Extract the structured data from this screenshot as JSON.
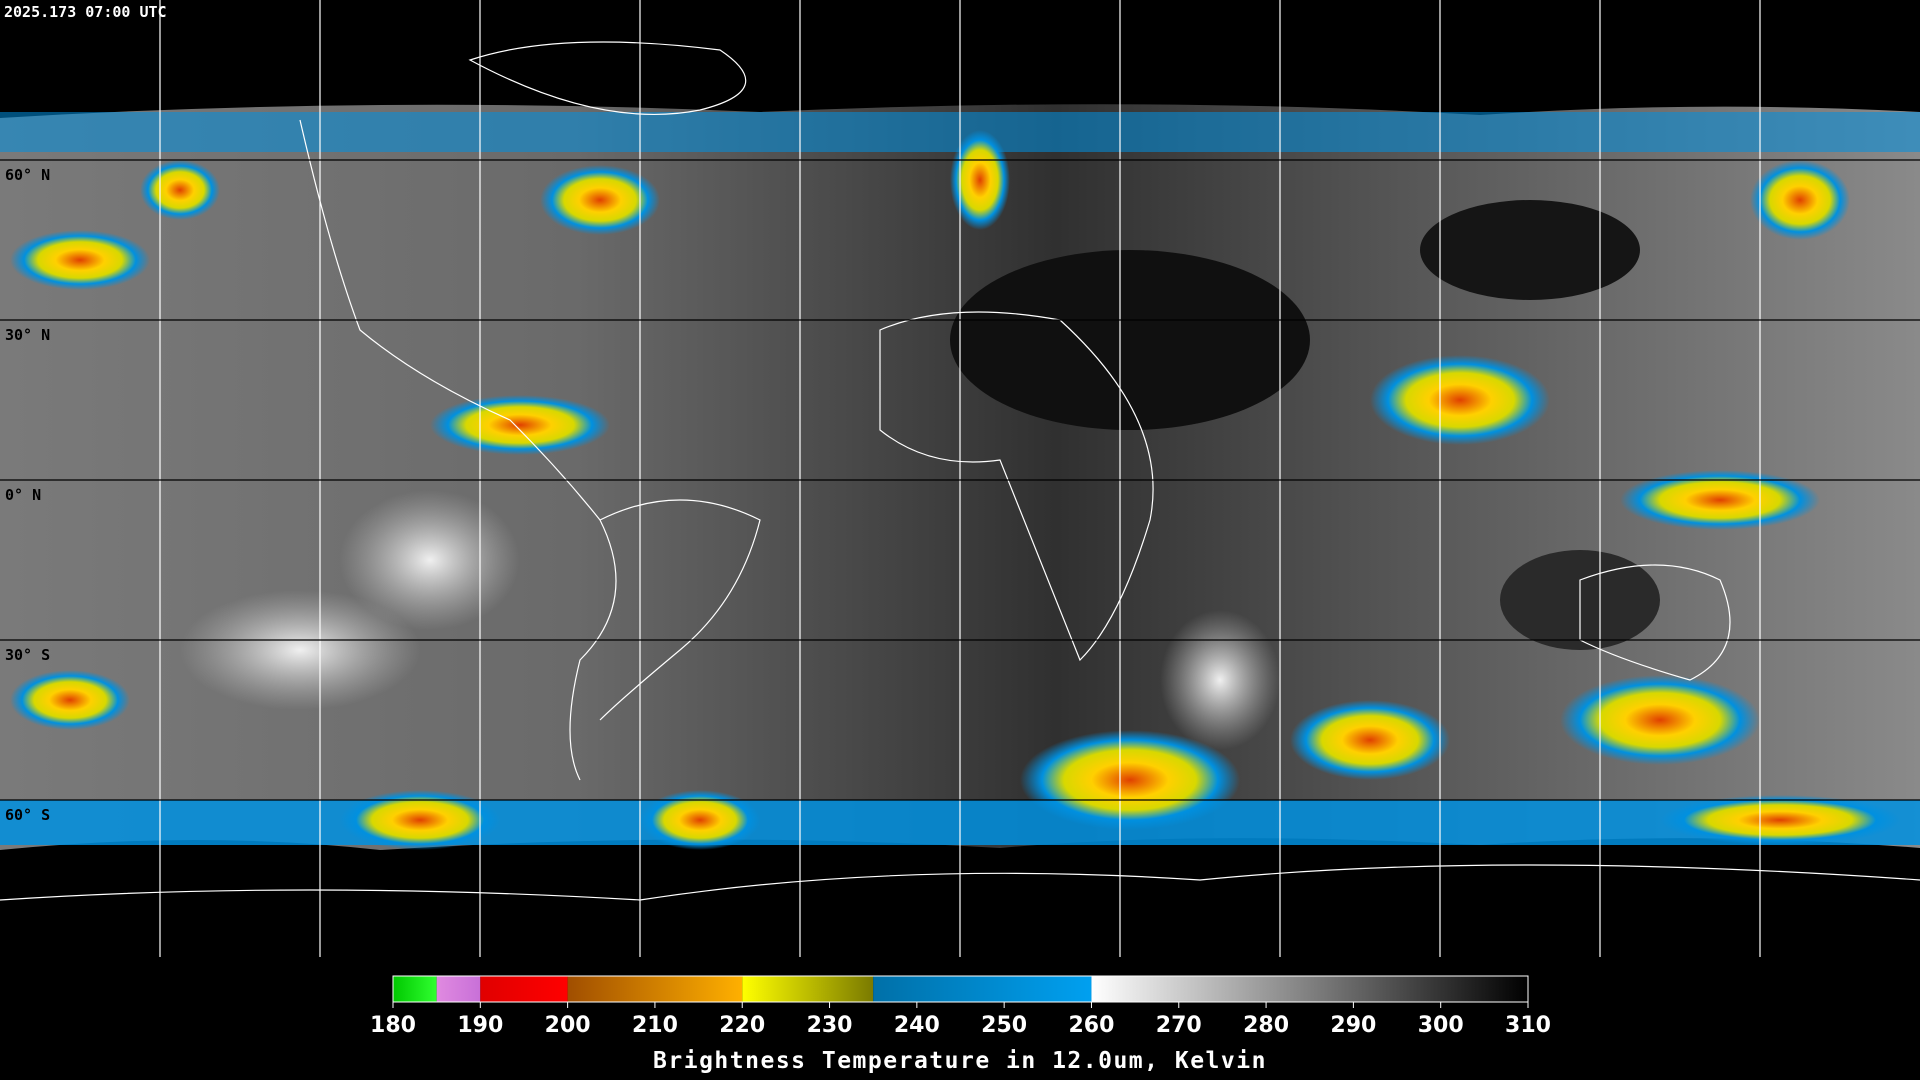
{
  "timestamp": "2025.173 07:00 UTC",
  "latitude_labels": [
    "60° N",
    "30° N",
    "0° N",
    "30° S",
    "60° S"
  ],
  "colorbar": {
    "title": "Brightness Temperature in 12.0um, Kelvin",
    "lim": [
      180,
      310
    ],
    "ticks": [
      180,
      190,
      200,
      210,
      220,
      230,
      240,
      250,
      260,
      270,
      280,
      290,
      300,
      310
    ],
    "segments": [
      {
        "from": 180,
        "to": 185,
        "colors": [
          "#00c800",
          "#30ff30"
        ]
      },
      {
        "from": 185,
        "to": 190,
        "colors": [
          "#e08ae0",
          "#c870d8"
        ]
      },
      {
        "from": 190,
        "to": 200,
        "colors": [
          "#e00000",
          "#ff0000"
        ]
      },
      {
        "from": 200,
        "to": 220,
        "colors": [
          "#a04e00",
          "#ffb000"
        ]
      },
      {
        "from": 220,
        "to": 235,
        "colors": [
          "#ffff00",
          "#7a7a00"
        ]
      },
      {
        "from": 235,
        "to": 260,
        "colors": [
          "#0070a8",
          "#00a0f0"
        ]
      },
      {
        "from": 260,
        "to": 310,
        "colors": [
          "#ffffff",
          "#000000"
        ]
      }
    ]
  }
}
